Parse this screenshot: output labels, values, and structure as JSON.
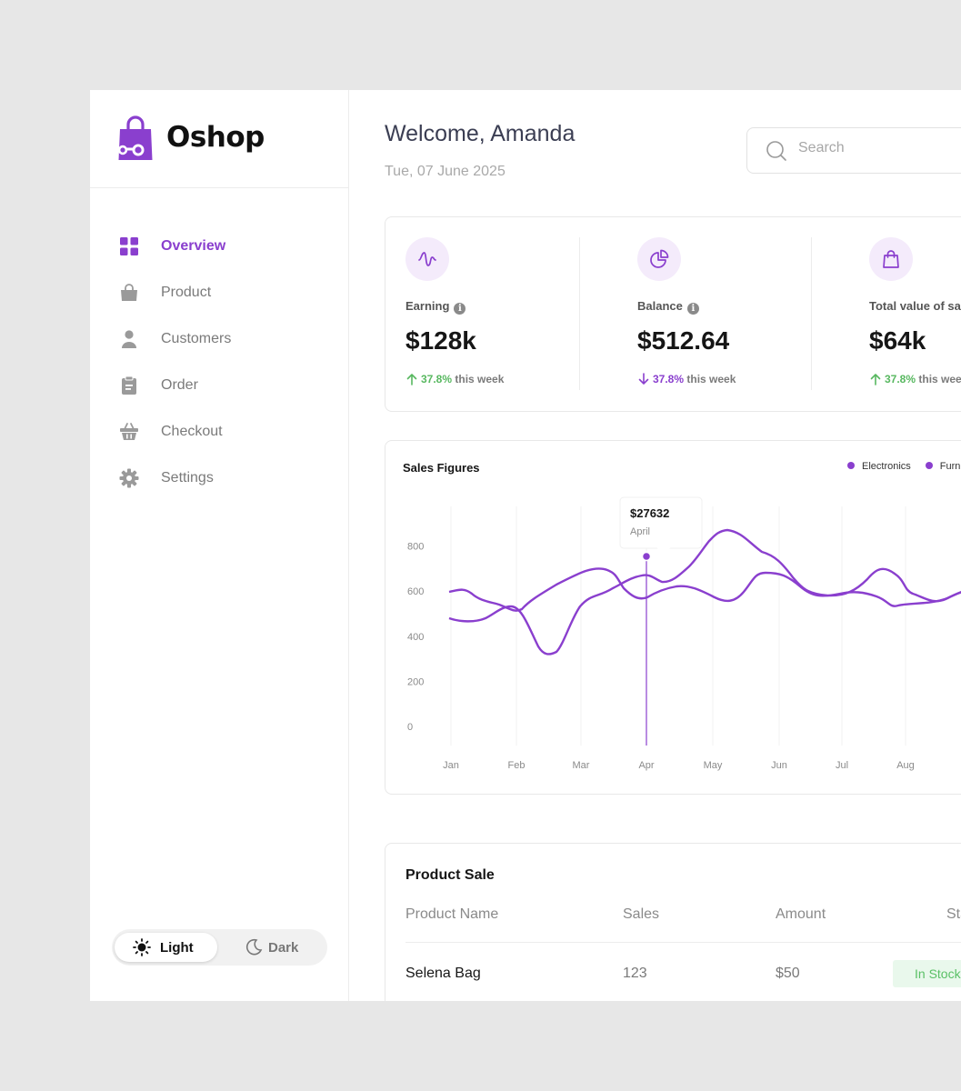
{
  "brand": {
    "name": "Oshop",
    "accent": "#8a3fce"
  },
  "sidebar": {
    "items": [
      {
        "label": "Overview",
        "icon": "grid-icon",
        "active": true
      },
      {
        "label": "Product",
        "icon": "bag-icon",
        "active": false
      },
      {
        "label": "Customers",
        "icon": "user-icon",
        "active": false
      },
      {
        "label": "Order",
        "icon": "clipboard-icon",
        "active": false
      },
      {
        "label": "Checkout",
        "icon": "basket-icon",
        "active": false
      },
      {
        "label": "Settings",
        "icon": "gear-icon",
        "active": false
      }
    ],
    "theme": {
      "light_label": "Light",
      "dark_label": "Dark",
      "selected": "Light"
    }
  },
  "header": {
    "welcome": "Welcome, Amanda",
    "date": "Tue, 07 June 2025",
    "search_placeholder": "Search"
  },
  "stats": [
    {
      "label": "Earning",
      "value": "$128k",
      "change": "37.8%",
      "direction": "up",
      "suffix": "this week",
      "icon": "pulse-icon"
    },
    {
      "label": "Balance",
      "value": "$512.64",
      "change": "37.8%",
      "direction": "down",
      "suffix": "this week",
      "icon": "pie-chart-icon"
    },
    {
      "label": "Total value of sales",
      "value": "$64k",
      "change": "37.8%",
      "direction": "up",
      "suffix": "this week",
      "icon": "shopping-bag-icon"
    }
  ],
  "chart_data": {
    "type": "line",
    "title": "Sales Figures",
    "categories": [
      "Jan",
      "Feb",
      "Mar",
      "Apr",
      "May",
      "Jun",
      "Jul",
      "Aug"
    ],
    "yticks": [
      800,
      600,
      400,
      200,
      0
    ],
    "series": [
      {
        "name": "Electronics",
        "color": "#8a3fce"
      },
      {
        "name": "Furniture",
        "color": "#8a3fce"
      }
    ],
    "tooltip": {
      "value": "$27632",
      "label": "April",
      "category": "Apr"
    }
  },
  "product_sale": {
    "title": "Product Sale",
    "columns": [
      "Product Name",
      "Sales",
      "Amount",
      "Status"
    ],
    "rows": [
      {
        "name": "Selena Bag",
        "sales": "123",
        "amount": "$50",
        "status": "In Stock"
      }
    ]
  }
}
